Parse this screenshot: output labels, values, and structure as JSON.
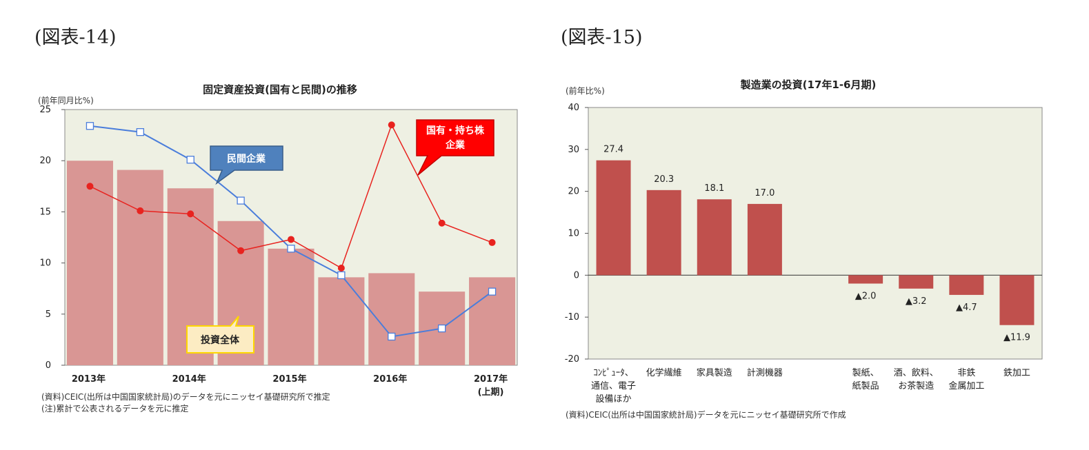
{
  "fig14": {
    "label": "(図表-14)",
    "chart_data": {
      "type": "bar",
      "title": "固定資産投資(国有と民間)の推移",
      "ylabel": "(前年同月比%)",
      "ylim": [
        0,
        25
      ],
      "yticks": [
        "0",
        "5",
        "10",
        "15",
        "20",
        "25"
      ],
      "xtick_labels": [
        "2013年",
        "2014年",
        "2015年",
        "2016年",
        "2017年",
        "(上期)"
      ],
      "periods": 9,
      "series": [
        {
          "name": "投資全体",
          "kind": "bar",
          "color": "#d99694",
          "values": [
            20.0,
            19.1,
            17.3,
            14.1,
            11.4,
            8.6,
            9.0,
            7.2,
            8.6
          ]
        },
        {
          "name": "民間企業",
          "kind": "line",
          "color": "#4a7ddb",
          "values": [
            23.4,
            22.8,
            20.1,
            16.1,
            11.4,
            8.8,
            2.8,
            3.6,
            7.2
          ]
        },
        {
          "name": "国有・持ち株企業",
          "kind": "line",
          "color": "#e8231f",
          "values": [
            17.5,
            15.1,
            14.8,
            11.2,
            12.3,
            9.5,
            23.5,
            13.9,
            12.0
          ]
        }
      ],
      "callouts": {
        "private": "民間企業",
        "state_line1": "国有・持ち株",
        "state_line2": "企業",
        "total": "投資全体"
      },
      "notes": [
        "(資料)CEIC(出所は中国国家統計局)のデータを元にニッセイ基礎研究所で推定",
        "(注)累計で公表されるデータを元に推定"
      ]
    }
  },
  "fig15": {
    "label": "(図表-15)",
    "chart_data": {
      "type": "bar",
      "title": "製造業の投資(17年1-6月期)",
      "ylabel": "(前年比%)",
      "ylim": [
        -20,
        40
      ],
      "yticks": [
        "-20",
        "-10",
        "0",
        "10",
        "20",
        "30",
        "40"
      ],
      "color": "#c0504d",
      "categories": [
        [
          "ｺﾝﾋﾟｭｰﾀ、",
          "通信、電子",
          "設備ほか"
        ],
        [
          "化学繊維"
        ],
        [
          "家具製造"
        ],
        [
          "計測機器"
        ],
        [],
        [
          "製紙、",
          "紙製品"
        ],
        [
          "酒、飲料、",
          "お茶製造"
        ],
        [
          "非鉄",
          "金属加工"
        ],
        [
          "鉄加工"
        ]
      ],
      "values": [
        27.4,
        20.3,
        18.1,
        17.0,
        null,
        -2.0,
        -3.2,
        -4.7,
        -11.9
      ],
      "data_labels": [
        "27.4",
        "20.3",
        "18.1",
        "17.0",
        "",
        "▲2.0",
        "▲3.2",
        "▲4.7",
        "▲11.9"
      ],
      "notes": [
        "(資料)CEIC(出所は中国国家統計局)データを元にニッセイ基礎研究所で作成"
      ]
    }
  }
}
